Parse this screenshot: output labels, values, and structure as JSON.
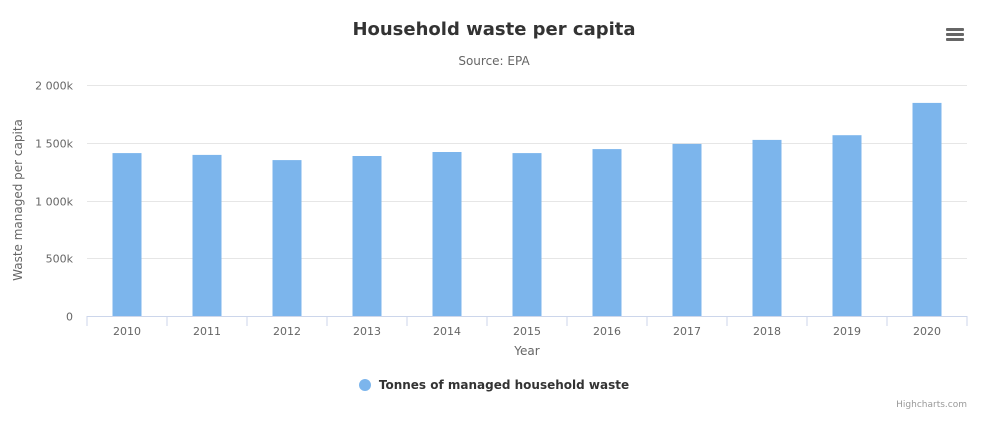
{
  "chart_data": {
    "type": "bar",
    "title": "Household waste per capita",
    "subtitle": "Source: EPA",
    "xlabel": "Year",
    "ylabel": "Waste managed per capita",
    "categories": [
      "2010",
      "2011",
      "2012",
      "2013",
      "2014",
      "2015",
      "2016",
      "2017",
      "2018",
      "2019",
      "2020"
    ],
    "series": [
      {
        "name": "Tonnes of managed household waste",
        "values": [
          1410000,
          1395000,
          1350000,
          1385000,
          1420000,
          1410000,
          1445000,
          1490000,
          1525000,
          1565000,
          1845000
        ]
      }
    ],
    "ylim": [
      0,
      2000000
    ],
    "yticks": [
      0,
      500000,
      1000000,
      1500000,
      2000000
    ],
    "ytick_labels": [
      "0",
      "500k",
      "1 000k",
      "1 500k",
      "2 000k"
    ],
    "grid": true,
    "legend_position": "bottom-center",
    "colors": {
      "bar": "#7cb5ec",
      "grid": "#e6e6e6",
      "axis": "#ccd6eb"
    }
  },
  "credits": "Highcharts.com",
  "menu_icon": "hamburger-menu-icon"
}
